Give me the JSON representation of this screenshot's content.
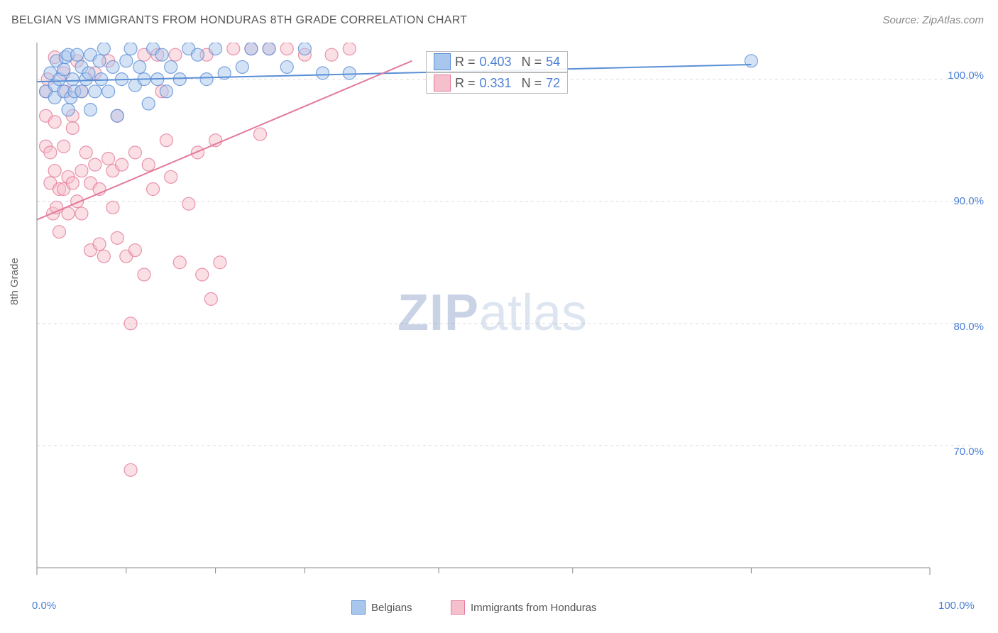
{
  "title": "BELGIAN VS IMMIGRANTS FROM HONDURAS 8TH GRADE CORRELATION CHART",
  "source": "Source: ZipAtlas.com",
  "ylabel": "8th Grade",
  "watermark_bold": "ZIP",
  "watermark_light": "atlas",
  "chart": {
    "type": "scatter",
    "xlim": [
      0,
      100
    ],
    "ylim": [
      60,
      103
    ],
    "x_ticks_major": [
      0,
      100
    ],
    "x_ticks_minor": [
      10,
      20,
      30,
      45,
      60,
      80
    ],
    "y_ticks_major": [
      70,
      80,
      90,
      100
    ],
    "x_tick_labels": {
      "0": "0.0%",
      "100": "100.0%"
    },
    "y_tick_labels": {
      "70": "70.0%",
      "80": "80.0%",
      "90": "90.0%",
      "100": "100.0%"
    },
    "grid_color": "#dcdcdc",
    "axis_color": "#888888",
    "background_color": "#ffffff",
    "marker_radius": 9,
    "marker_opacity": 0.5,
    "line_width": 2,
    "series": [
      {
        "name": "Belgians",
        "color_fill": "#a9c6ec",
        "color_stroke": "#5b8fd6",
        "r": 0.403,
        "n": 54,
        "trend": {
          "x1": 0,
          "y1": 99.8,
          "x2": 80,
          "y2": 101.2
        },
        "points": [
          [
            1,
            99
          ],
          [
            1.5,
            100.5
          ],
          [
            2,
            98.5
          ],
          [
            2,
            99.5
          ],
          [
            2.2,
            101.5
          ],
          [
            2.5,
            100
          ],
          [
            3,
            99
          ],
          [
            3,
            100.8
          ],
          [
            3.2,
            101.8
          ],
          [
            3.5,
            97.5
          ],
          [
            3.5,
            102
          ],
          [
            3.8,
            98.5
          ],
          [
            4,
            100
          ],
          [
            4.2,
            99
          ],
          [
            4.5,
            102
          ],
          [
            5,
            99
          ],
          [
            5,
            101
          ],
          [
            5.5,
            100
          ],
          [
            5.8,
            100.5
          ],
          [
            6,
            97.5
          ],
          [
            6,
            102
          ],
          [
            6.5,
            99
          ],
          [
            7,
            101.5
          ],
          [
            7.2,
            100
          ],
          [
            7.5,
            102.5
          ],
          [
            8,
            99
          ],
          [
            8.5,
            101
          ],
          [
            9,
            97
          ],
          [
            9.5,
            100
          ],
          [
            10,
            101.5
          ],
          [
            10.5,
            102.5
          ],
          [
            11,
            99.5
          ],
          [
            11.5,
            101
          ],
          [
            12,
            100
          ],
          [
            12.5,
            98
          ],
          [
            13,
            102.5
          ],
          [
            13.5,
            100
          ],
          [
            14,
            102
          ],
          [
            14.5,
            99
          ],
          [
            15,
            101
          ],
          [
            16,
            100
          ],
          [
            17,
            102.5
          ],
          [
            18,
            102
          ],
          [
            19,
            100
          ],
          [
            20,
            102.5
          ],
          [
            21,
            100.5
          ],
          [
            23,
            101
          ],
          [
            24,
            102.5
          ],
          [
            26,
            102.5
          ],
          [
            28,
            101
          ],
          [
            30,
            102.5
          ],
          [
            32,
            100.5
          ],
          [
            35,
            100.5
          ],
          [
            80,
            101.5
          ]
        ]
      },
      {
        "name": "Immigrants from Honduras",
        "color_fill": "#f5bfcb",
        "color_stroke": "#e37a9a",
        "r": 0.331,
        "n": 72,
        "trend": {
          "x1": 0,
          "y1": 88.5,
          "x2": 42,
          "y2": 101.5
        },
        "points": [
          [
            1,
            99
          ],
          [
            1,
            97
          ],
          [
            1,
            94.5
          ],
          [
            1.2,
            100
          ],
          [
            1.5,
            94
          ],
          [
            1.5,
            91.5
          ],
          [
            1.8,
            89
          ],
          [
            2,
            101.8
          ],
          [
            2,
            96.5
          ],
          [
            2,
            92.5
          ],
          [
            2.2,
            89.5
          ],
          [
            2.5,
            91
          ],
          [
            2.5,
            87.5
          ],
          [
            3,
            100.5
          ],
          [
            3,
            94.5
          ],
          [
            3,
            91
          ],
          [
            3.2,
            99
          ],
          [
            3.5,
            92
          ],
          [
            3.5,
            89
          ],
          [
            4,
            97
          ],
          [
            4,
            96
          ],
          [
            4,
            91.5
          ],
          [
            4.5,
            101.5
          ],
          [
            4.5,
            90
          ],
          [
            5,
            99
          ],
          [
            5,
            92.5
          ],
          [
            5,
            89
          ],
          [
            5.5,
            94
          ],
          [
            6,
            91.5
          ],
          [
            6,
            86
          ],
          [
            6.5,
            100.5
          ],
          [
            6.5,
            93
          ],
          [
            7,
            91
          ],
          [
            7,
            86.5
          ],
          [
            7.5,
            85.5
          ],
          [
            8,
            101.5
          ],
          [
            8,
            93.5
          ],
          [
            8.5,
            92.5
          ],
          [
            8.5,
            89.5
          ],
          [
            9,
            97
          ],
          [
            9,
            87
          ],
          [
            9.5,
            93
          ],
          [
            10,
            85.5
          ],
          [
            10.5,
            80
          ],
          [
            10.5,
            68
          ],
          [
            11,
            94
          ],
          [
            11,
            86
          ],
          [
            12,
            102
          ],
          [
            12,
            84
          ],
          [
            12.5,
            93
          ],
          [
            13,
            91
          ],
          [
            13.5,
            102
          ],
          [
            14,
            99
          ],
          [
            14.5,
            95
          ],
          [
            15,
            92
          ],
          [
            15.5,
            102
          ],
          [
            16,
            85
          ],
          [
            17,
            89.8
          ],
          [
            18,
            94
          ],
          [
            18.5,
            84
          ],
          [
            19,
            102
          ],
          [
            19.5,
            82
          ],
          [
            20,
            95
          ],
          [
            20.5,
            85
          ],
          [
            22,
            102.5
          ],
          [
            24,
            102.5
          ],
          [
            25,
            95.5
          ],
          [
            26,
            102.5
          ],
          [
            28,
            102.5
          ],
          [
            30,
            102
          ],
          [
            33,
            102
          ],
          [
            35,
            102.5
          ]
        ]
      }
    ],
    "stat_labels": {
      "r": "R =",
      "n": "N ="
    },
    "legend": [
      {
        "label": "Belgians",
        "fill": "#a9c6ec",
        "stroke": "#5b8fd6"
      },
      {
        "label": "Immigrants from Honduras",
        "fill": "#f5bfcb",
        "stroke": "#e37a9a"
      }
    ]
  }
}
